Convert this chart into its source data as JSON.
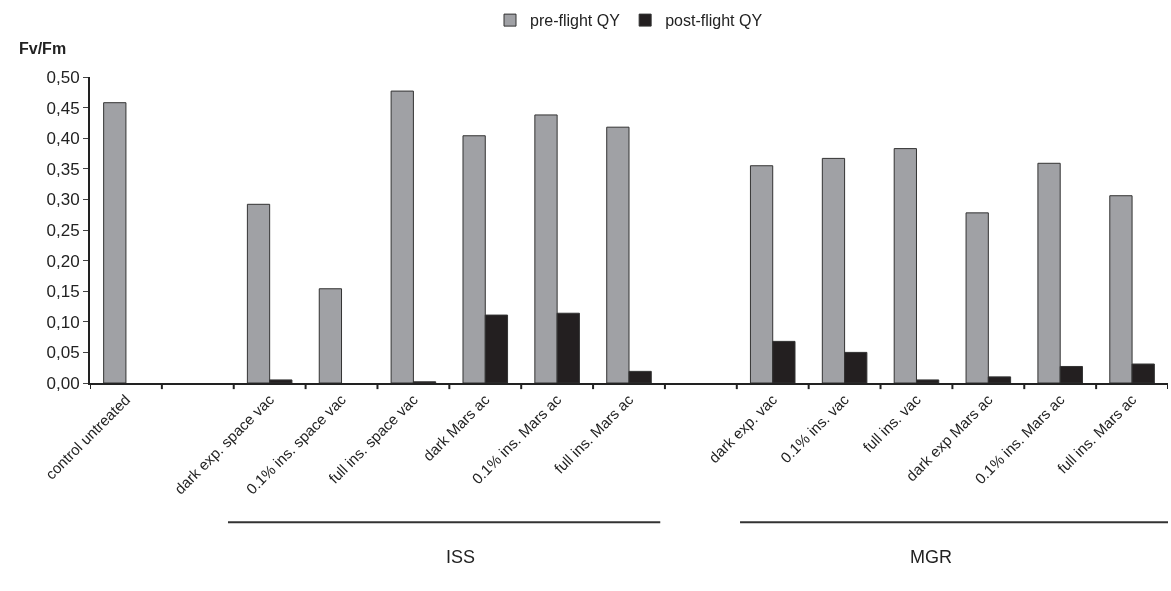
{
  "chart_data": {
    "type": "bar",
    "ylabel": "Fv/Fm",
    "categories": [
      "control untreated",
      null,
      "dark exp. space vac",
      "0.1% ins. space vac",
      "full ins. space vac",
      "dark Mars ac",
      "0.1% ins. Mars ac",
      "full ins. Mars ac",
      null,
      "dark exp. vac",
      "0.1% ins. vac",
      "full ins. vac",
      "dark exp Mars ac",
      "0.1% ins. Mars ac",
      "full ins. Mars ac"
    ],
    "series": [
      {
        "name": "pre-flight QY",
        "color": "#a0a1a5",
        "values": [
          0.458,
          null,
          0.292,
          0.154,
          0.477,
          0.404,
          0.438,
          0.418,
          null,
          0.355,
          0.367,
          0.383,
          0.278,
          0.359,
          0.306
        ]
      },
      {
        "name": "post-flight QY",
        "color": "#231f20",
        "values": [
          null,
          null,
          0.005,
          null,
          0.002,
          0.111,
          0.114,
          0.019,
          null,
          0.068,
          0.05,
          0.005,
          0.01,
          0.027,
          0.031
        ]
      }
    ],
    "ylim": [
      0,
      0.5
    ],
    "yticks": [
      {
        "value": 0,
        "label": "0,00"
      },
      {
        "value": 0.05,
        "label": "0,05"
      },
      {
        "value": 0.1,
        "label": "0,10"
      },
      {
        "value": 0.15,
        "label": "0,15"
      },
      {
        "value": 0.2,
        "label": "0,20"
      },
      {
        "value": 0.25,
        "label": "0,25"
      },
      {
        "value": 0.3,
        "label": "0,30"
      },
      {
        "value": 0.35,
        "label": "0,35"
      },
      {
        "value": 0.4,
        "label": "0,40"
      },
      {
        "value": 0.45,
        "label": "0,45"
      },
      {
        "value": 0.5,
        "label": "0,50"
      }
    ],
    "annotations": [
      "ISS",
      "MGR"
    ],
    "grid": false,
    "legend": "top"
  }
}
